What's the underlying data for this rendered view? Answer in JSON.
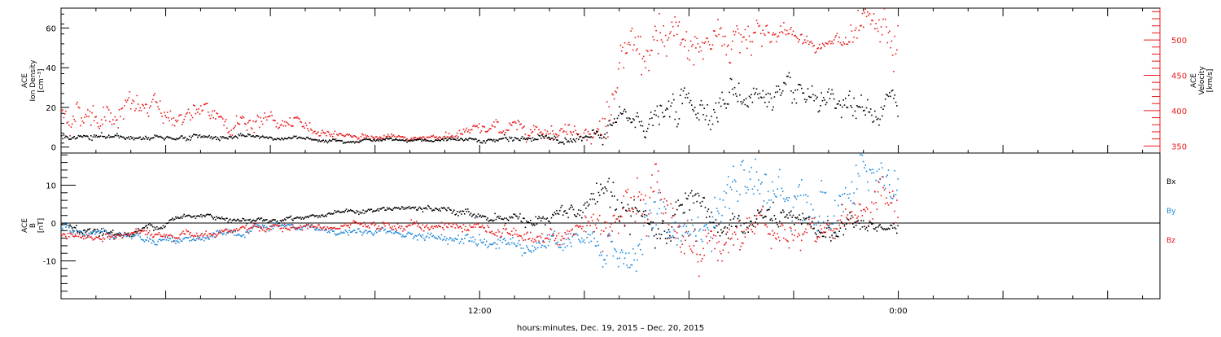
{
  "chart_data": [
    {
      "type": "scatter",
      "panel": "top",
      "ylabel_left": [
        "ACE",
        "Ion Density",
        "[cm⁻³]"
      ],
      "ylabel_right": [
        "ACE",
        "Velocity",
        "[km/s]"
      ],
      "ylim_left": [
        -3,
        70
      ],
      "yticks_left": [
        0,
        20,
        40,
        60
      ],
      "ylim_right": [
        340,
        545
      ],
      "yticks_right": [
        350,
        400,
        450,
        500
      ],
      "series": [
        {
          "axis": "left",
          "color": "#000000",
          "key_points": [
            [
              0,
              5
            ],
            [
              5,
              5.5
            ],
            [
              8,
              4
            ],
            [
              10,
              4
            ],
            [
              12,
              3.5
            ],
            [
              13,
              4
            ],
            [
              14,
              5
            ],
            [
              15,
              5
            ],
            [
              15.5,
              5
            ],
            [
              16,
              13
            ],
            [
              17,
              15
            ],
            [
              18,
              20
            ],
            [
              19,
              25
            ],
            [
              20,
              27
            ],
            [
              21,
              22
            ],
            [
              22,
              18
            ],
            [
              23,
              17
            ],
            [
              24,
              20
            ]
          ],
          "spread": [
            [
              0,
              1.2
            ],
            [
              10,
              0.4
            ],
            [
              15,
              1.5
            ],
            [
              16,
              4
            ],
            [
              18,
              6
            ],
            [
              20,
              5
            ],
            [
              22,
              4
            ],
            [
              24,
              6
            ]
          ]
        },
        {
          "axis": "right",
          "color": "#e8191a",
          "key_points": [
            [
              0,
              395
            ],
            [
              2,
              405
            ],
            [
              3,
              395
            ],
            [
              6,
              385
            ],
            [
              7,
              375
            ],
            [
              8,
              368
            ],
            [
              9,
              363
            ],
            [
              10,
              361
            ],
            [
              11,
              366
            ],
            [
              12,
              372
            ],
            [
              13,
              378
            ],
            [
              14,
              378
            ],
            [
              15,
              374
            ],
            [
              15.5,
              370
            ],
            [
              16,
              460
            ],
            [
              17,
              475
            ],
            [
              18,
              490
            ],
            [
              19,
              505
            ],
            [
              20,
              520
            ],
            [
              21,
              507
            ],
            [
              22,
              495
            ],
            [
              23,
              495
            ],
            [
              24,
              485
            ]
          ],
          "spread": [
            [
              0,
              15
            ],
            [
              3,
              12
            ],
            [
              6,
              8
            ],
            [
              8,
              3
            ],
            [
              10,
              2
            ],
            [
              12,
              6
            ],
            [
              14,
              8
            ],
            [
              15,
              6
            ],
            [
              16,
              25
            ],
            [
              18,
              25
            ],
            [
              20,
              18
            ],
            [
              21,
              6
            ],
            [
              22,
              5
            ],
            [
              23,
              20
            ],
            [
              24,
              25
            ]
          ]
        }
      ]
    },
    {
      "type": "scatter",
      "panel": "bottom",
      "ylabel": [
        "ACE",
        "B",
        "[nT]"
      ],
      "ylim": [
        -20,
        18.5
      ],
      "yticks": [
        -10,
        0,
        10
      ],
      "legend": [
        "Bx",
        "By",
        "Bz"
      ],
      "legend_position": "right",
      "series": [
        {
          "name": "Bx",
          "color": "#000000",
          "key_points": [
            [
              0,
              0
            ],
            [
              1,
              -2
            ],
            [
              2,
              -3
            ],
            [
              3,
              1
            ],
            [
              4,
              2
            ],
            [
              5,
              1.5
            ],
            [
              6,
              1
            ],
            [
              7,
              2
            ],
            [
              8,
              3
            ],
            [
              9,
              3.5
            ],
            [
              10,
              4
            ],
            [
              11,
              3.5
            ],
            [
              12,
              2
            ],
            [
              13,
              1.5
            ],
            [
              14,
              1
            ],
            [
              15,
              3
            ],
            [
              16,
              8
            ],
            [
              17,
              -4
            ],
            [
              18,
              1
            ],
            [
              19,
              -2
            ],
            [
              20,
              2
            ],
            [
              21,
              -1
            ],
            [
              22,
              -2
            ],
            [
              23,
              0
            ],
            [
              24,
              -2
            ]
          ],
          "spread": [
            [
              0,
              0.8
            ],
            [
              8,
              0.4
            ],
            [
              12,
              0.6
            ],
            [
              15,
              2
            ],
            [
              16,
              4
            ],
            [
              18,
              3
            ],
            [
              20,
              2
            ],
            [
              22,
              2
            ],
            [
              24,
              1
            ]
          ]
        },
        {
          "name": "By",
          "color": "#1e88d8",
          "key_points": [
            [
              0,
              -1
            ],
            [
              1,
              -2
            ],
            [
              2,
              -3
            ],
            [
              3,
              -4
            ],
            [
              4,
              -4
            ],
            [
              5,
              -3
            ],
            [
              6,
              -1
            ],
            [
              7,
              -1
            ],
            [
              8,
              -2
            ],
            [
              9,
              -2
            ],
            [
              10,
              -3
            ],
            [
              11,
              -4
            ],
            [
              12,
              -3
            ],
            [
              13,
              -5
            ],
            [
              14,
              -5
            ],
            [
              15,
              -5
            ],
            [
              16,
              -10
            ],
            [
              17,
              0
            ],
            [
              18,
              -2
            ],
            [
              19,
              2
            ],
            [
              20,
              10
            ],
            [
              21,
              8
            ],
            [
              22,
              3
            ],
            [
              23,
              10
            ],
            [
              24,
              10
            ]
          ],
          "spread": [
            [
              0,
              0.8
            ],
            [
              8,
              0.6
            ],
            [
              12,
              1
            ],
            [
              15,
              2
            ],
            [
              16,
              5
            ],
            [
              18,
              4
            ],
            [
              20,
              4
            ],
            [
              22,
              5
            ],
            [
              24,
              4
            ]
          ]
        },
        {
          "name": "Bz",
          "color": "#e8191a",
          "key_points": [
            [
              0,
              -3
            ],
            [
              1,
              -4
            ],
            [
              2,
              -3
            ],
            [
              3,
              -3
            ],
            [
              4,
              -2
            ],
            [
              5,
              -2
            ],
            [
              6,
              -1
            ],
            [
              7,
              -1
            ],
            [
              8,
              -1
            ],
            [
              9,
              -1
            ],
            [
              10,
              -0.5
            ],
            [
              11,
              -0.5
            ],
            [
              12,
              -1
            ],
            [
              13,
              -3
            ],
            [
              14,
              -3
            ],
            [
              15,
              -1
            ],
            [
              16,
              5
            ],
            [
              17,
              8
            ],
            [
              18,
              -4
            ],
            [
              19,
              -5
            ],
            [
              20,
              1
            ],
            [
              21,
              -3
            ],
            [
              22,
              -2
            ],
            [
              23,
              6
            ],
            [
              24,
              2
            ]
          ],
          "spread": [
            [
              0,
              0.8
            ],
            [
              8,
              0.6
            ],
            [
              12,
              1
            ],
            [
              15,
              2
            ],
            [
              16,
              5
            ],
            [
              18,
              4
            ],
            [
              20,
              3
            ],
            [
              22,
              3
            ],
            [
              24,
              4
            ]
          ]
        }
      ]
    }
  ],
  "time_axis": {
    "tick_labels": [
      {
        "hour": 12,
        "label": "12:00"
      },
      {
        "hour": 24,
        "label": "0:00"
      }
    ],
    "xlim_hours": [
      0,
      31.5
    ],
    "data_end_hour": 24,
    "xlabel": "hours:minutes, Dec. 19, 2015 – Dec. 20, 2015"
  },
  "colors": {
    "black": "#000000",
    "red": "#e8191a",
    "blue": "#1e88d8"
  }
}
